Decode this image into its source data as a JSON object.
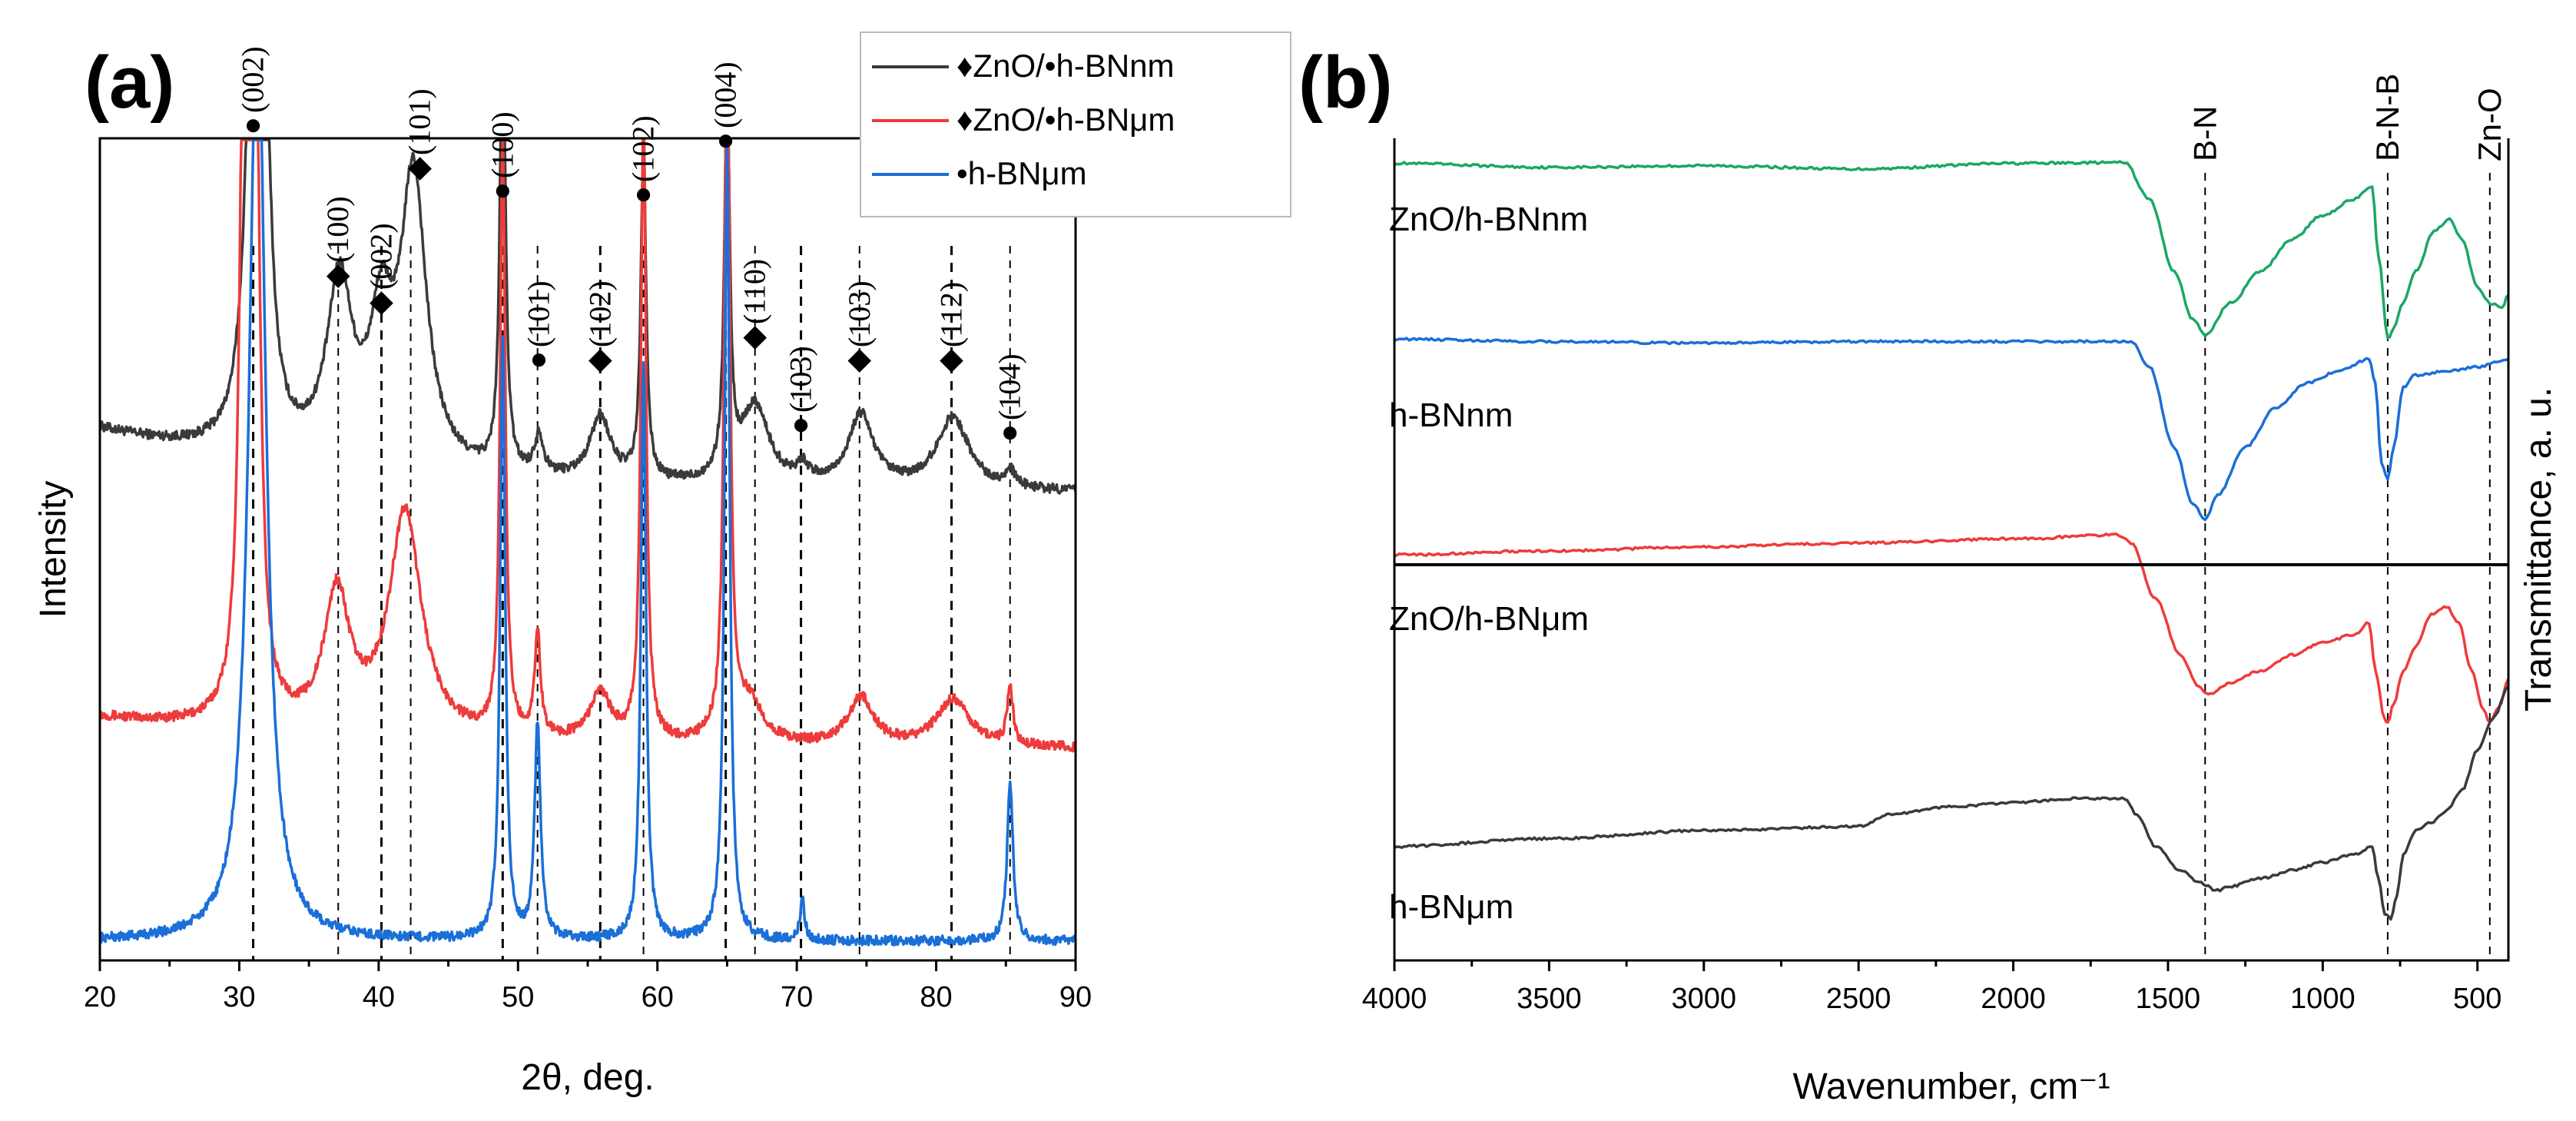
{
  "panel_a_label": "(a)",
  "panel_b_label": "(b)",
  "chart_data": [
    {
      "type": "line",
      "panel": "(a)",
      "xlabel": "2θ, deg.",
      "ylabel": "Intensity",
      "xlim": [
        20,
        90
      ],
      "xticks": [
        20,
        30,
        40,
        50,
        60,
        70,
        80,
        90
      ],
      "legend": {
        "position": "top-right",
        "entries": [
          {
            "marker": "♦",
            "text": "ZnO/•h-BNnm",
            "color": "#3a3a3a"
          },
          {
            "marker": "♦",
            "text": "ZnO/•h-BNμm",
            "color": "#ee3b3b"
          },
          {
            "marker": "",
            "text": "•h-BNμm",
            "color": "#1a6fd8"
          }
        ]
      },
      "series": [
        {
          "name": "ZnO/•h-BNnm",
          "color": "#3a3a3a",
          "offset": 0.56,
          "baseline": 0.08,
          "peaks": [
            [
              31.0,
              0.55,
              0.6
            ],
            [
              31.7,
              0.5,
              0.5
            ],
            [
              37.2,
              0.22,
              1.1
            ],
            [
              40.2,
              0.16,
              1.0
            ],
            [
              42.5,
              0.36,
              1.1
            ],
            [
              48.9,
              0.62,
              0.22
            ],
            [
              51.5,
              0.05,
              0.35
            ],
            [
              55.9,
              0.08,
              0.9
            ],
            [
              59.0,
              0.42,
              0.22
            ],
            [
              65.0,
              0.5,
              0.22
            ],
            [
              67.0,
              0.1,
              1.2
            ],
            [
              70.4,
              0.02,
              0.5
            ],
            [
              74.6,
              0.09,
              1.1
            ],
            [
              81.2,
              0.09,
              1.4
            ],
            [
              85.3,
              0.02,
              0.4
            ]
          ]
        },
        {
          "name": "ZnO/•h-BNμm",
          "color": "#ee3b3b",
          "offset": 0.24,
          "baseline": 0.04,
          "peaks": [
            [
              30.4,
              1.0,
              0.35
            ],
            [
              31.1,
              1.0,
              0.35
            ],
            [
              37.0,
              0.17,
              1.1
            ],
            [
              41.9,
              0.28,
              1.4
            ],
            [
              48.9,
              0.75,
              0.22
            ],
            [
              51.4,
              0.13,
              0.25
            ],
            [
              55.9,
              0.06,
              0.9
            ],
            [
              59.0,
              0.8,
              0.22
            ],
            [
              65.0,
              1.0,
              0.22
            ],
            [
              66.6,
              0.05,
              1.2
            ],
            [
              74.6,
              0.06,
              1.1
            ],
            [
              81.2,
              0.06,
              1.4
            ],
            [
              85.3,
              0.07,
              0.25
            ]
          ]
        },
        {
          "name": "•h-BNμm",
          "color": "#1a6fd8",
          "offset": 0.0,
          "baseline": 0.0,
          "peaks": [
            [
              31.3,
              1.2,
              0.7
            ],
            [
              48.9,
              0.75,
              0.22
            ],
            [
              51.4,
              0.27,
              0.25
            ],
            [
              59.0,
              0.72,
              0.22
            ],
            [
              65.0,
              1.0,
              0.22
            ],
            [
              70.4,
              0.05,
              0.2
            ],
            [
              85.3,
              0.2,
              0.25
            ]
          ]
        }
      ],
      "reference_lines": [
        31,
        37.1,
        40.2,
        42.3,
        48.9,
        51.4,
        55.9,
        59.0,
        64.9,
        67.0,
        70.3,
        74.5,
        81.1,
        85.3
      ],
      "peak_labels": [
        {
          "x": 31.0,
          "marker": "●",
          "text": "(002)"
        },
        {
          "x": 37.1,
          "marker": "◆",
          "text": "(100)"
        },
        {
          "x": 40.2,
          "marker": "◆",
          "text": "(002)"
        },
        {
          "x": 42.3,
          "marker": "◆",
          "text": "(101)"
        },
        {
          "x": 48.9,
          "marker": "●",
          "text": "(100)"
        },
        {
          "x": 51.5,
          "marker": "●",
          "text": "(101)"
        },
        {
          "x": 55.9,
          "marker": "◆",
          "text": "(102)"
        },
        {
          "x": 59.0,
          "marker": "●",
          "text": "(102)"
        },
        {
          "x": 64.9,
          "marker": "●",
          "text": "(004)"
        },
        {
          "x": 67.0,
          "marker": "◆",
          "text": "(110)"
        },
        {
          "x": 70.3,
          "marker": "●",
          "text": "(103)"
        },
        {
          "x": 74.5,
          "marker": "◆",
          "text": "(103)"
        },
        {
          "x": 81.1,
          "marker": "◆",
          "text": "(112)"
        },
        {
          "x": 85.3,
          "marker": "●",
          "text": "(104)"
        }
      ]
    },
    {
      "type": "line",
      "panel": "(b)",
      "xlabel": "Wavenumber, cm⁻¹",
      "ylabel": "Transmittance, a. u.",
      "xlim": [
        4000,
        400
      ],
      "xticks": [
        4000,
        3500,
        3000,
        2500,
        2000,
        1500,
        1000,
        500
      ],
      "band_lines": [
        {
          "x": 1380,
          "label": "B-N"
        },
        {
          "x": 790,
          "label": "B-N-B"
        },
        {
          "x": 460,
          "label": "Zn-O"
        }
      ],
      "series": [
        {
          "name": "ZnO/h-BNnm",
          "label": "ZnO/h-BNnm",
          "color": "#1aa865",
          "points": [
            [
              4000,
              0.935
            ],
            [
              3500,
              0.93
            ],
            [
              3000,
              0.932
            ],
            [
              2500,
              0.928
            ],
            [
              2000,
              0.935
            ],
            [
              1640,
              0.936
            ],
            [
              1560,
              0.89
            ],
            [
              1480,
              0.8
            ],
            [
              1420,
              0.74
            ],
            [
              1380,
              0.72
            ],
            [
              1300,
              0.76
            ],
            [
              1200,
              0.8
            ],
            [
              1100,
              0.84
            ],
            [
              1000,
              0.87
            ],
            [
              900,
              0.89
            ],
            [
              840,
              0.905
            ],
            [
              820,
              0.82
            ],
            [
              790,
              0.715
            ],
            [
              770,
              0.73
            ],
            [
              740,
              0.76
            ],
            [
              700,
              0.8
            ],
            [
              640,
              0.85
            ],
            [
              590,
              0.865
            ],
            [
              550,
              0.84
            ],
            [
              500,
              0.78
            ],
            [
              460,
              0.76
            ],
            [
              420,
              0.755
            ],
            [
              400,
              0.77
            ]
          ]
        },
        {
          "name": "h-BNnm",
          "label": "h-BNnm",
          "color": "#1a6fd8",
          "points": [
            [
              4000,
              0.715
            ],
            [
              3500,
              0.712
            ],
            [
              3000,
              0.71
            ],
            [
              2500,
              0.712
            ],
            [
              2000,
              0.712
            ],
            [
              1620,
              0.712
            ],
            [
              1560,
              0.68
            ],
            [
              1480,
              0.58
            ],
            [
              1420,
              0.51
            ],
            [
              1380,
              0.49
            ],
            [
              1340,
              0.52
            ],
            [
              1250,
              0.58
            ],
            [
              1150,
              0.63
            ],
            [
              1050,
              0.66
            ],
            [
              950,
              0.675
            ],
            [
              850,
              0.69
            ],
            [
              830,
              0.66
            ],
            [
              810,
              0.56
            ],
            [
              790,
              0.54
            ],
            [
              770,
              0.58
            ],
            [
              740,
              0.655
            ],
            [
              700,
              0.67
            ],
            [
              600,
              0.675
            ],
            [
              500,
              0.68
            ],
            [
              400,
              0.69
            ]
          ]
        },
        {
          "name": "ZnO/h-BNμm",
          "label": "ZnO/h-BNμm",
          "color": "#ee3b3b",
          "points": [
            [
              4000,
              0.445
            ],
            [
              3500,
              0.45
            ],
            [
              3000,
              0.455
            ],
            [
              2500,
              0.46
            ],
            [
              2000,
              0.465
            ],
            [
              1660,
              0.47
            ],
            [
              1620,
              0.46
            ],
            [
              1540,
              0.39
            ],
            [
              1460,
              0.32
            ],
            [
              1400,
              0.28
            ],
            [
              1370,
              0.27
            ],
            [
              1300,
              0.285
            ],
            [
              1200,
              0.3
            ],
            [
              1100,
              0.32
            ],
            [
              1000,
              0.335
            ],
            [
              900,
              0.345
            ],
            [
              850,
              0.36
            ],
            [
              830,
              0.3
            ],
            [
              800,
              0.24
            ],
            [
              790,
              0.235
            ],
            [
              770,
              0.26
            ],
            [
              740,
              0.3
            ],
            [
              700,
              0.33
            ],
            [
              650,
              0.37
            ],
            [
              600,
              0.38
            ],
            [
              560,
              0.36
            ],
            [
              520,
              0.3
            ],
            [
              480,
              0.25
            ],
            [
              460,
              0.235
            ],
            [
              430,
              0.255
            ],
            [
              400,
              0.29
            ]
          ]
        },
        {
          "name": "h-BNμm",
          "label": "h-BNμm",
          "color": "#3a3a3a",
          "points": [
            [
              4000,
              0.08
            ],
            [
              3500,
              0.09
            ],
            [
              3000,
              0.1
            ],
            [
              2500,
              0.105
            ],
            [
              2400,
              0.12
            ],
            [
              2200,
              0.13
            ],
            [
              2000,
              0.135
            ],
            [
              1800,
              0.14
            ],
            [
              1640,
              0.14
            ],
            [
              1600,
              0.12
            ],
            [
              1540,
              0.08
            ],
            [
              1460,
              0.05
            ],
            [
              1400,
              0.035
            ],
            [
              1340,
              0.025
            ],
            [
              1300,
              0.03
            ],
            [
              1200,
              0.04
            ],
            [
              1100,
              0.05
            ],
            [
              1000,
              0.06
            ],
            [
              900,
              0.07
            ],
            [
              840,
              0.08
            ],
            [
              820,
              0.04
            ],
            [
              800,
              -0.005
            ],
            [
              780,
              -0.01
            ],
            [
              760,
              0.02
            ],
            [
              740,
              0.07
            ],
            [
              700,
              0.1
            ],
            [
              650,
              0.11
            ],
            [
              600,
              0.125
            ],
            [
              550,
              0.15
            ],
            [
              500,
              0.2
            ],
            [
              450,
              0.24
            ],
            [
              400,
              0.28
            ]
          ]
        }
      ]
    }
  ]
}
